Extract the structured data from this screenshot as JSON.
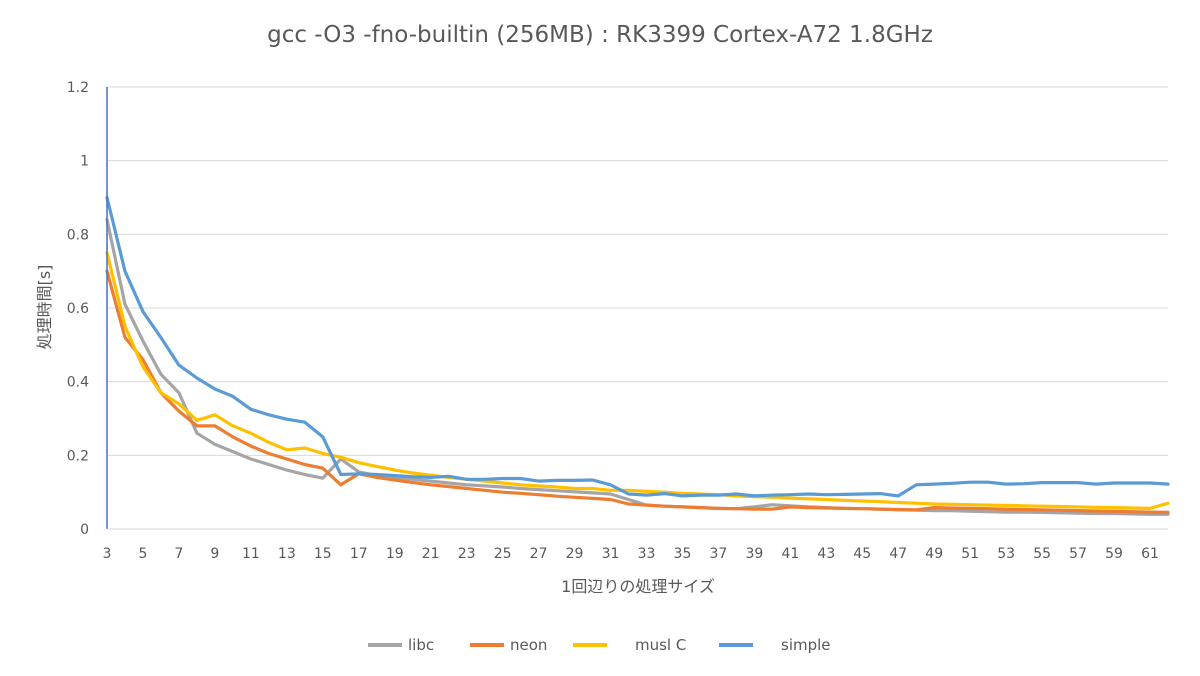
{
  "chart_data": {
    "type": "line",
    "title": "gcc -O3 -fno-builtin (256MB) : RK3399 Cortex-A72 1.8GHz",
    "xlabel": "1回辺りの処理サイズ",
    "ylabel": "処理時間[s]",
    "ylim": [
      0,
      1.2
    ],
    "yticks": [
      "0",
      "0.2",
      "0.4",
      "0.6",
      "0.8",
      "1",
      "1.2"
    ],
    "xlim": [
      3,
      62
    ],
    "xtick_values": [
      3,
      5,
      7,
      9,
      11,
      13,
      15,
      17,
      19,
      21,
      23,
      25,
      27,
      29,
      31,
      33,
      35,
      37,
      39,
      41,
      43,
      45,
      47,
      49,
      51,
      53,
      55,
      57,
      59,
      61
    ],
    "grid": true,
    "legend_position": "bottom",
    "x": [
      3,
      4,
      5,
      6,
      7,
      8,
      9,
      10,
      11,
      12,
      13,
      14,
      15,
      16,
      17,
      18,
      19,
      20,
      21,
      22,
      23,
      24,
      25,
      26,
      27,
      28,
      29,
      30,
      31,
      32,
      33,
      34,
      35,
      36,
      37,
      38,
      39,
      40,
      41,
      42,
      43,
      44,
      45,
      46,
      47,
      48,
      49,
      50,
      51,
      52,
      53,
      54,
      55,
      56,
      57,
      58,
      59,
      60,
      61,
      62
    ],
    "series": [
      {
        "name": "libc",
        "color": "#A5A5A5",
        "values": [
          0.84,
          0.61,
          0.51,
          0.42,
          0.37,
          0.26,
          0.23,
          0.21,
          0.19,
          0.175,
          0.16,
          0.148,
          0.138,
          0.19,
          0.155,
          0.145,
          0.14,
          0.135,
          0.13,
          0.125,
          0.12,
          0.117,
          0.114,
          0.11,
          0.107,
          0.104,
          0.101,
          0.098,
          0.095,
          0.08,
          0.065,
          0.062,
          0.06,
          0.058,
          0.056,
          0.055,
          0.06,
          0.066,
          0.063,
          0.06,
          0.058,
          0.056,
          0.055,
          0.054,
          0.052,
          0.051,
          0.05,
          0.05,
          0.048,
          0.047,
          0.046,
          0.046,
          0.045,
          0.044,
          0.043,
          0.042,
          0.042,
          0.041,
          0.04,
          0.04
        ]
      },
      {
        "name": "neon",
        "color": "#ED7D31",
        "values": [
          0.7,
          0.52,
          0.46,
          0.37,
          0.32,
          0.28,
          0.28,
          0.25,
          0.225,
          0.205,
          0.19,
          0.175,
          0.165,
          0.12,
          0.15,
          0.14,
          0.133,
          0.126,
          0.12,
          0.115,
          0.11,
          0.105,
          0.1,
          0.097,
          0.093,
          0.089,
          0.086,
          0.083,
          0.08,
          0.068,
          0.065,
          0.062,
          0.06,
          0.058,
          0.056,
          0.055,
          0.054,
          0.054,
          0.06,
          0.058,
          0.057,
          0.056,
          0.055,
          0.054,
          0.053,
          0.052,
          0.058,
          0.057,
          0.056,
          0.055,
          0.054,
          0.053,
          0.052,
          0.051,
          0.05,
          0.049,
          0.048,
          0.047,
          0.046,
          0.045
        ]
      },
      {
        "name": "musl C",
        "color": "#FFC000",
        "values": [
          0.75,
          0.55,
          0.44,
          0.37,
          0.34,
          0.295,
          0.31,
          0.28,
          0.26,
          0.235,
          0.215,
          0.22,
          0.205,
          0.195,
          0.18,
          0.17,
          0.16,
          0.152,
          0.146,
          0.14,
          0.135,
          0.13,
          0.125,
          0.12,
          0.117,
          0.114,
          0.11,
          0.11,
          0.105,
          0.105,
          0.102,
          0.1,
          0.097,
          0.095,
          0.093,
          0.09,
          0.088,
          0.086,
          0.084,
          0.082,
          0.08,
          0.078,
          0.076,
          0.074,
          0.072,
          0.07,
          0.068,
          0.067,
          0.066,
          0.065,
          0.064,
          0.063,
          0.062,
          0.061,
          0.06,
          0.059,
          0.058,
          0.057,
          0.056,
          0.07
        ]
      },
      {
        "name": "simple",
        "color": "#5B9BD5",
        "values": [
          0.9,
          0.7,
          0.59,
          0.52,
          0.445,
          0.41,
          0.38,
          0.36,
          0.325,
          0.31,
          0.298,
          0.29,
          0.25,
          0.148,
          0.15,
          0.148,
          0.145,
          0.142,
          0.14,
          0.143,
          0.135,
          0.135,
          0.137,
          0.137,
          0.13,
          0.132,
          0.132,
          0.133,
          0.12,
          0.095,
          0.092,
          0.096,
          0.09,
          0.092,
          0.092,
          0.095,
          0.09,
          0.092,
          0.093,
          0.095,
          0.093,
          0.094,
          0.095,
          0.096,
          0.09,
          0.12,
          0.122,
          0.124,
          0.127,
          0.127,
          0.122,
          0.123,
          0.126,
          0.126,
          0.126,
          0.122,
          0.125,
          0.125,
          0.125,
          0.122
        ]
      }
    ]
  }
}
